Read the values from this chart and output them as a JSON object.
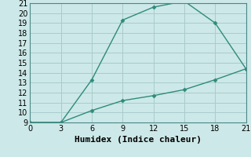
{
  "xlabel": "Humidex (Indice chaleur)",
  "ylabel": "",
  "line1_x": [
    0,
    3,
    6,
    9,
    12,
    15,
    18,
    21
  ],
  "line1_y": [
    9,
    9,
    13.3,
    19.3,
    20.6,
    21.2,
    19.0,
    14.4
  ],
  "line2_x": [
    0,
    3,
    6,
    9,
    12,
    15,
    18,
    21
  ],
  "line2_y": [
    9,
    9,
    10.2,
    11.2,
    11.7,
    12.3,
    13.3,
    14.4
  ],
  "line_color": "#2e8b7a",
  "bg_color": "#cde8e8",
  "plot_bg_color": "#cde8e8",
  "xlim": [
    0,
    21
  ],
  "ylim": [
    9,
    21
  ],
  "xticks": [
    0,
    3,
    6,
    9,
    12,
    15,
    18,
    21
  ],
  "yticks": [
    9,
    10,
    11,
    12,
    13,
    14,
    15,
    16,
    17,
    18,
    19,
    20,
    21
  ],
  "grid_color": "#a8cccc",
  "marker": "D",
  "markersize": 2.5,
  "linewidth": 1.0,
  "xlabel_fontsize": 8,
  "tick_fontsize": 7
}
